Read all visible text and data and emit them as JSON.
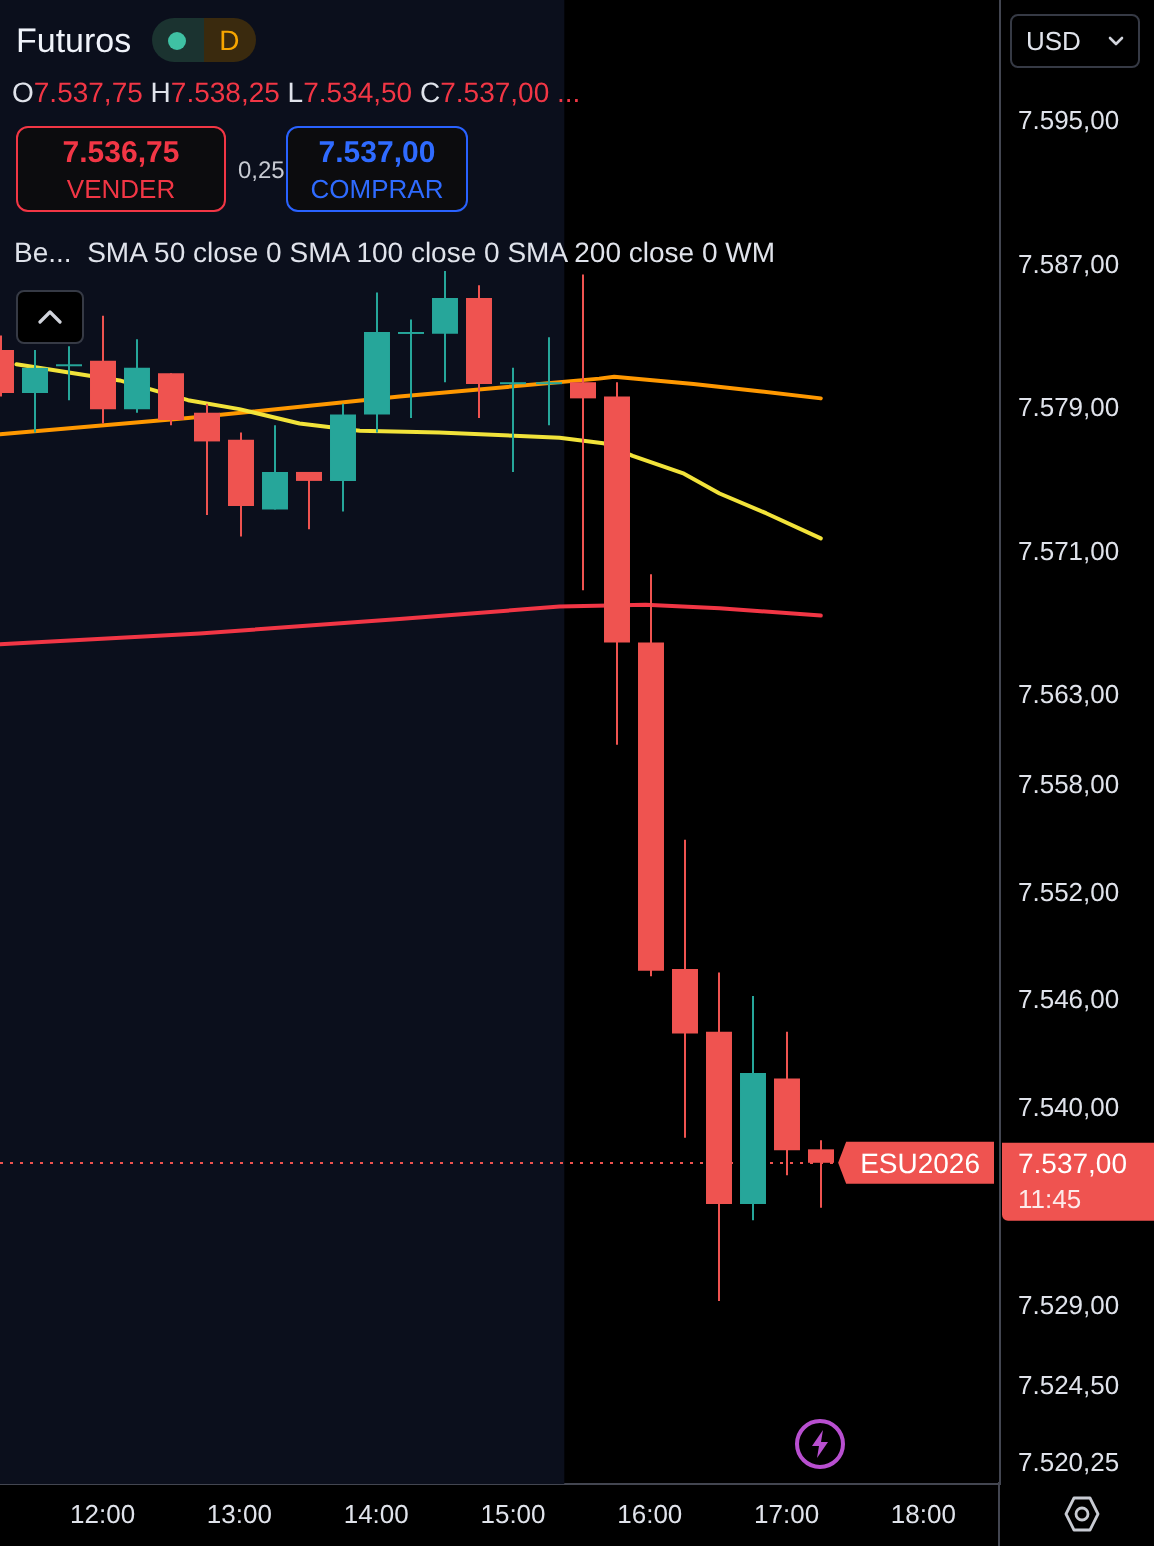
{
  "chart_data": {
    "type": "candlestick",
    "title": "Futuros",
    "annotations": [
      "D",
      "O7.537,75 H7.538,25 L7.534,50 C7.537,00 ...",
      "7.536,75",
      "VENDER",
      "0,25",
      "7.537,00",
      "COMPRAR",
      "Be...  SMA 50 close 0 SMA 100 close 0 SMA 200 close 0 WM",
      "USD",
      "7.537,00",
      "11:45"
    ],
    "x": [
      11.25,
      11.5,
      11.75,
      12,
      12.25,
      12.5,
      12.75,
      13,
      13.25,
      13.5,
      13.75,
      14,
      14.25,
      14.5,
      14.75,
      15,
      15.25,
      15.5,
      15.75,
      16,
      16.25,
      16.5,
      16.75,
      17,
      17.25
    ],
    "ohlc": [
      [
        7582.3,
        7583.1,
        7579.7,
        7579.9
      ],
      [
        7579.9,
        7582.3,
        7577.7,
        7581.3
      ],
      [
        7581.5,
        7582.5,
        7579.5,
        7581.5
      ],
      [
        7581.7,
        7584.2,
        7578.2,
        7579.0
      ],
      [
        7579.0,
        7582.9,
        7578.8,
        7581.3
      ],
      [
        7581.0,
        7581.0,
        7578.1,
        7578.4
      ],
      [
        7578.8,
        7579.3,
        7573.1,
        7577.2
      ],
      [
        7577.3,
        7577.7,
        7571.9,
        7573.6
      ],
      [
        7573.4,
        7578.1,
        7573.4,
        7575.5
      ],
      [
        7575.5,
        7575.5,
        7572.3,
        7575.0
      ],
      [
        7575.0,
        7579.3,
        7573.3,
        7578.7
      ],
      [
        7578.7,
        7585.5,
        7577.7,
        7583.3
      ],
      [
        7583.3,
        7584.0,
        7578.5,
        7583.3
      ],
      [
        7583.2,
        7586.7,
        7580.5,
        7585.2
      ],
      [
        7585.2,
        7585.9,
        7578.5,
        7580.4
      ],
      [
        7580.5,
        7581.3,
        7575.5,
        7580.5
      ],
      [
        7580.5,
        7583.0,
        7578.1,
        7580.5
      ],
      [
        7580.5,
        7586.5,
        7568.9,
        7579.6
      ],
      [
        7579.7,
        7580.5,
        7560.3,
        7566.0
      ],
      [
        7566.0,
        7569.8,
        7547.4,
        7547.7
      ],
      [
        7547.8,
        7555.0,
        7538.4,
        7544.2
      ],
      [
        7544.3,
        7547.6,
        7529.3,
        7534.7
      ],
      [
        7534.7,
        7546.3,
        7533.8,
        7542.0
      ],
      [
        7541.7,
        7544.3,
        7536.3,
        7537.7
      ],
      [
        7537.75,
        7538.25,
        7534.5,
        7537.0
      ]
    ],
    "colors": [
      "#ef5350",
      "#26a69a",
      "#26a69a",
      "#ef5350",
      "#26a69a",
      "#ef5350",
      "#ef5350",
      "#ef5350",
      "#26a69a",
      "#ef5350",
      "#26a69a",
      "#26a69a",
      "#26a69a",
      "#26a69a",
      "#ef5350",
      "#26a69a",
      "#26a69a",
      "#ef5350",
      "#ef5350",
      "#ef5350",
      "#ef5350",
      "#ef5350",
      "#26a69a",
      "#ef5350",
      "#ef5350"
    ],
    "series": [
      {
        "type": "line",
        "color": "#f2e33a",
        "x": [
          11.37,
          12.125,
          12.625,
          13.0,
          13.44,
          13.88,
          14.46,
          15.05,
          15.34,
          15.66,
          15.875,
          16.25,
          16.51,
          16.85,
          17.25
        ],
        "values": [
          7581.5,
          7580.6,
          7579.5,
          7579.0,
          7578.2,
          7577.8,
          7577.7,
          7577.5,
          7577.4,
          7577.1,
          7576.4,
          7575.4,
          7574.3,
          7573.2,
          7571.8
        ]
      },
      {
        "type": "line",
        "color": "#ff9800",
        "x": [
          11.25,
          12.625,
          14.17,
          15.63,
          15.74,
          16.32,
          16.8,
          17.25
        ],
        "values": [
          7577.6,
          7578.5,
          7579.7,
          7580.7,
          7580.8,
          7580.4,
          7580.0,
          7579.6
        ]
      },
      {
        "type": "line",
        "color": "#f23645",
        "x": [
          11.25,
          12.71,
          14.17,
          15.34,
          15.97,
          16.51,
          17.25
        ],
        "values": [
          7565.9,
          7566.5,
          7567.3,
          7568.0,
          7568.1,
          7567.9,
          7567.5
        ]
      }
    ],
    "xlim": [
      11.25,
      18.56
    ],
    "xticks": [
      {
        "value": 12,
        "label": "12:00"
      },
      {
        "value": 13,
        "label": "13:00"
      },
      {
        "value": 14,
        "label": "14:00"
      },
      {
        "value": 15,
        "label": "15:00"
      },
      {
        "value": 16,
        "label": "16:00"
      },
      {
        "value": 17,
        "label": "17:00"
      },
      {
        "value": 18,
        "label": "18:00"
      }
    ],
    "ylim": [
      7519.1,
      7601.8
    ],
    "yticks": [
      {
        "value": 7595,
        "label": "7.595,00"
      },
      {
        "value": 7587,
        "label": "7.587,00"
      },
      {
        "value": 7579,
        "label": "7.579,00"
      },
      {
        "value": 7571,
        "label": "7.571,00"
      },
      {
        "value": 7563,
        "label": "7.563,00"
      },
      {
        "value": 7558,
        "label": "7.558,00"
      },
      {
        "value": 7552,
        "label": "7.552,00"
      },
      {
        "value": 7546,
        "label": "7.546,00"
      },
      {
        "value": 7540,
        "label": "7.540,00"
      },
      {
        "value": 7529,
        "label": "7.529,00"
      },
      {
        "value": 7524.5,
        "label": "7.524,50"
      },
      {
        "value": 7520.25,
        "label": "7.520,25"
      }
    ],
    "bands": [
      {
        "axis": "x",
        "from": 11.25,
        "to": 15.375,
        "color": "#0b0f1c"
      }
    ],
    "ref_lines": [
      {
        "axis": "y",
        "value": 7537,
        "label": "ESU2026",
        "color": "#ef5350",
        "line_style": "dotted"
      }
    ]
  }
}
